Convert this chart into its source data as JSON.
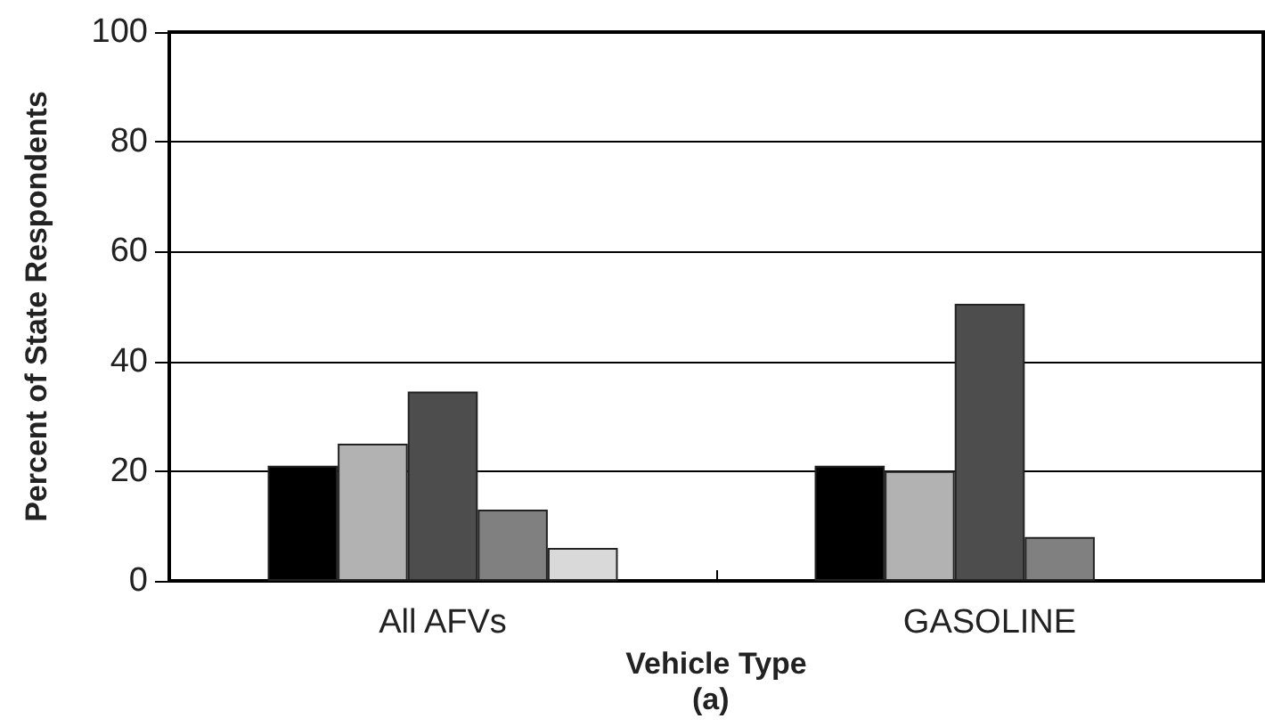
{
  "chart_data": {
    "type": "bar",
    "categories": [
      "All AFVs",
      "GASOLINE"
    ],
    "series": [
      {
        "color": "#000000",
        "values": [
          21,
          21
        ]
      },
      {
        "color": "#b2b2b2",
        "values": [
          25,
          20
        ]
      },
      {
        "color": "#4d4d4d",
        "values": [
          34.5,
          50.5
        ]
      },
      {
        "color": "#808080",
        "values": [
          13,
          8
        ]
      },
      {
        "color": "#d9d9d9",
        "values": [
          6,
          null
        ]
      }
    ],
    "ylim": [
      0,
      100
    ],
    "yticks": [
      0,
      20,
      40,
      60,
      80,
      100
    ],
    "grid": "y",
    "xlabel": "Vehicle Type",
    "ylabel": "Percent of State Respondents",
    "annotations": [
      "(a)"
    ]
  }
}
